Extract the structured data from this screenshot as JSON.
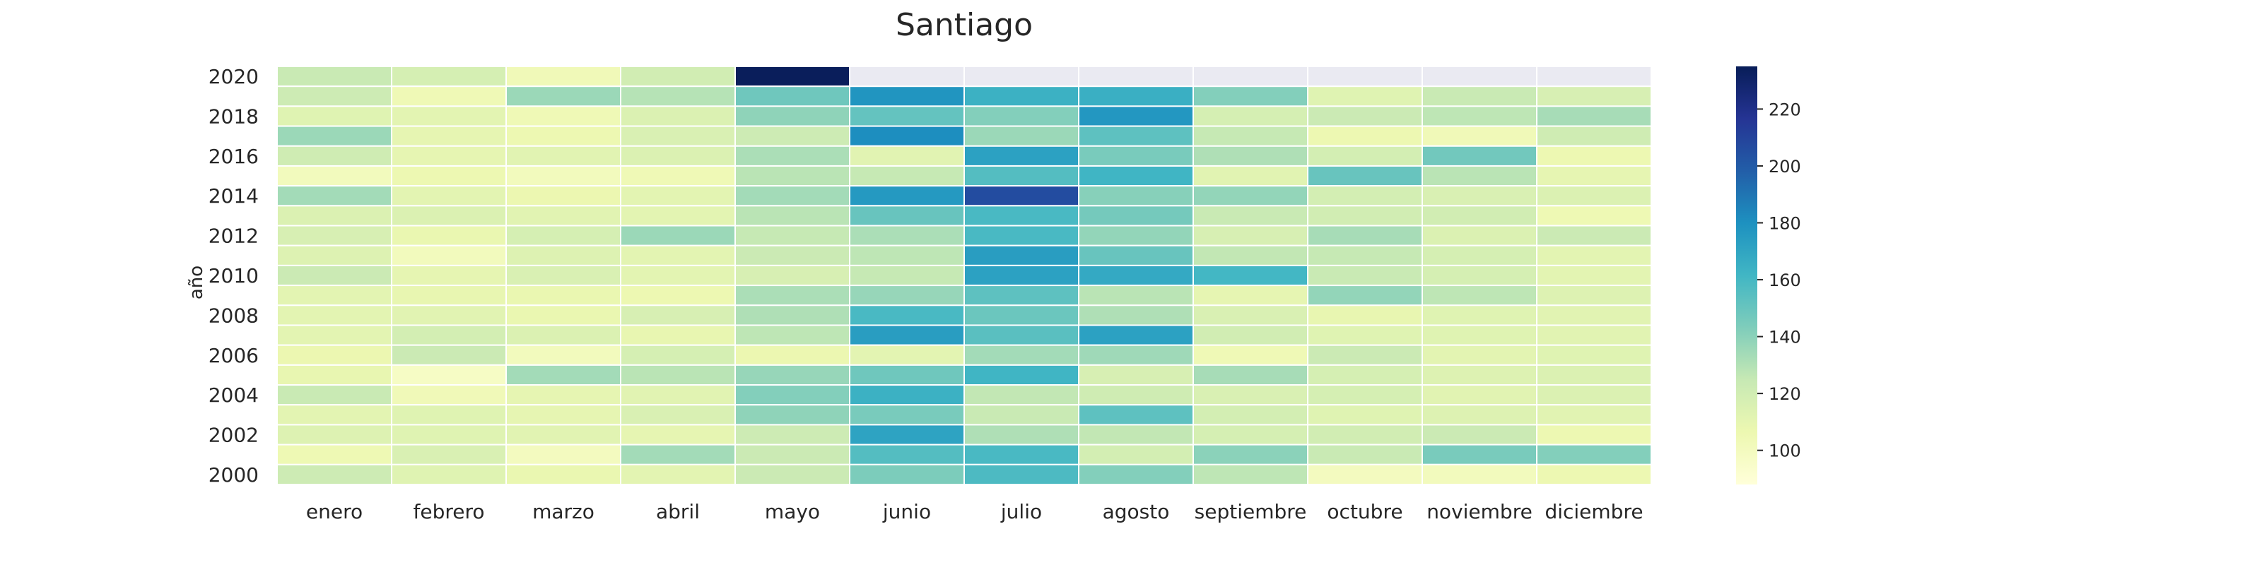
{
  "chart_data": {
    "type": "heatmap",
    "title": "Santiago",
    "xlabel": "",
    "ylabel": "año",
    "x_categories": [
      "enero",
      "febrero",
      "marzo",
      "abril",
      "mayo",
      "junio",
      "julio",
      "agosto",
      "septiembre",
      "octubre",
      "noviembre",
      "diciembre"
    ],
    "y_categories": [
      2020,
      2019,
      2018,
      2017,
      2016,
      2015,
      2014,
      2013,
      2012,
      2011,
      2010,
      2009,
      2008,
      2007,
      2006,
      2005,
      2004,
      2003,
      2002,
      2001,
      2000
    ],
    "y_tick_labels": [
      "2020",
      "2018",
      "2016",
      "2014",
      "2012",
      "2010",
      "2008",
      "2006",
      "2004",
      "2002",
      "2000"
    ],
    "values": [
      [
        124,
        118,
        103,
        120,
        234,
        null,
        null,
        null,
        null,
        null,
        null,
        null
      ],
      [
        122,
        104,
        136,
        129,
        148,
        178,
        164,
        165,
        142,
        113,
        124,
        117
      ],
      [
        113,
        111,
        104,
        115,
        139,
        151,
        142,
        177,
        118,
        123,
        127,
        133
      ],
      [
        136,
        110,
        106,
        116,
        122,
        181,
        136,
        153,
        125,
        106,
        103,
        121
      ],
      [
        121,
        110,
        112,
        115,
        132,
        112,
        172,
        145,
        131,
        119,
        147,
        106
      ],
      [
        101,
        106,
        101,
        104,
        128,
        125,
        156,
        162,
        112,
        150,
        128,
        110
      ],
      [
        134,
        111,
        107,
        111,
        134,
        176,
        206,
        141,
        138,
        119,
        116,
        115
      ],
      [
        115,
        115,
        112,
        111,
        128,
        150,
        159,
        146,
        124,
        120,
        120,
        105
      ],
      [
        117,
        108,
        118,
        136,
        125,
        132,
        159,
        138,
        117,
        133,
        115,
        123
      ],
      [
        114,
        101,
        114,
        111,
        123,
        127,
        174,
        150,
        126,
        125,
        118,
        111
      ],
      [
        123,
        110,
        116,
        111,
        117,
        125,
        172,
        168,
        161,
        124,
        118,
        111
      ],
      [
        111,
        109,
        108,
        106,
        132,
        137,
        153,
        128,
        110,
        138,
        127,
        114
      ],
      [
        111,
        112,
        108,
        117,
        131,
        159,
        149,
        131,
        116,
        109,
        113,
        112
      ],
      [
        111,
        119,
        115,
        109,
        127,
        174,
        154,
        172,
        120,
        113,
        113,
        112
      ],
      [
        107,
        123,
        101,
        118,
        107,
        111,
        134,
        135,
        104,
        123,
        111,
        113
      ],
      [
        109,
        97,
        134,
        128,
        137,
        148,
        162,
        117,
        133,
        118,
        114,
        115
      ],
      [
        124,
        103,
        110,
        112,
        142,
        164,
        126,
        121,
        116,
        118,
        112,
        115
      ],
      [
        111,
        113,
        110,
        116,
        139,
        145,
        124,
        153,
        119,
        113,
        114,
        112
      ],
      [
        114,
        113,
        112,
        110,
        122,
        171,
        131,
        126,
        118,
        120,
        123,
        106
      ],
      [
        105,
        116,
        100,
        134,
        123,
        156,
        159,
        119,
        140,
        124,
        145,
        142
      ],
      [
        122,
        113,
        108,
        111,
        123,
        144,
        158,
        142,
        127,
        100,
        101,
        106
      ]
    ],
    "colorbar": {
      "min": 88,
      "max": 235,
      "ticks": [
        100,
        120,
        140,
        160,
        180,
        200,
        220
      ],
      "colormap": "YlGnBu",
      "stops": [
        "#ffffd9",
        "#edf8b1",
        "#c7e9b4",
        "#7fcdbb",
        "#41b6c4",
        "#1d91c0",
        "#225ea8",
        "#253494",
        "#081d58"
      ]
    },
    "missing_color": "#eaeaf2",
    "grid_line_color": "#ffffff"
  }
}
